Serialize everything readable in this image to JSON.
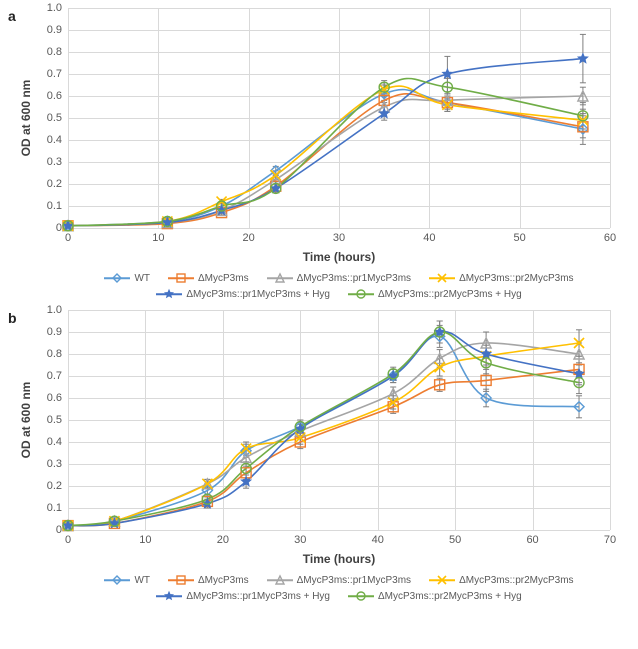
{
  "panels": [
    {
      "label": "a",
      "ylabel": "OD at 600 nm",
      "xlabel": "Time (hours)",
      "xlim": [
        0,
        60
      ],
      "xtick_step": 10,
      "ylim": [
        0,
        1
      ],
      "ytick_step": 0.1,
      "y_decimals": 1,
      "grid_color": "#d9d9d9",
      "label_fontsize": 12,
      "tick_fontsize": 11,
      "error_bar_color": "#7f7f7f",
      "error_cap": 3,
      "series": [
        {
          "name": "WT",
          "color": "#5b9bd5",
          "marker": "diamond-open",
          "x": [
            0,
            11,
            17,
            23,
            35,
            42,
            57
          ],
          "y": [
            0.01,
            0.03,
            0.1,
            0.26,
            0.61,
            0.57,
            0.45
          ],
          "err": [
            0.005,
            0.005,
            0.01,
            0.02,
            0.04,
            0.04,
            0.07
          ]
        },
        {
          "name": "ΔMycP3ms",
          "color": "#ed7d31",
          "marker": "square-open",
          "x": [
            0,
            11,
            17,
            23,
            35,
            42,
            57
          ],
          "y": [
            0.01,
            0.02,
            0.07,
            0.19,
            0.58,
            0.57,
            0.46
          ],
          "err": [
            0.005,
            0.005,
            0.01,
            0.02,
            0.03,
            0.03,
            0.05
          ]
        },
        {
          "name": "ΔMycP3ms::pr1MycP3ms",
          "color": "#a5a5a5",
          "marker": "triangle-open",
          "x": [
            0,
            11,
            17,
            23,
            35,
            42,
            57
          ],
          "y": [
            0.01,
            0.025,
            0.08,
            0.22,
            0.55,
            0.58,
            0.6
          ],
          "err": [
            0.005,
            0.005,
            0.01,
            0.02,
            0.03,
            0.03,
            0.04
          ]
        },
        {
          "name": "ΔMycP3ms::pr2MycP3ms",
          "color": "#ffc000",
          "marker": "x",
          "x": [
            0,
            11,
            17,
            23,
            35,
            42,
            57
          ],
          "y": [
            0.01,
            0.03,
            0.12,
            0.24,
            0.63,
            0.56,
            0.49
          ],
          "err": [
            0.005,
            0.005,
            0.01,
            0.02,
            0.03,
            0.03,
            0.05
          ]
        },
        {
          "name": "ΔMycP3ms::pr1MycP3ms + Hyg",
          "color": "#4472c4",
          "marker": "star",
          "x": [
            0,
            11,
            17,
            23,
            35,
            42,
            57
          ],
          "y": [
            0.01,
            0.025,
            0.08,
            0.18,
            0.52,
            0.7,
            0.77
          ],
          "err": [
            0.005,
            0.005,
            0.01,
            0.02,
            0.03,
            0.08,
            0.11
          ]
        },
        {
          "name": "ΔMycP3ms::pr2MycP3ms + Hyg",
          "color": "#70ad47",
          "marker": "circle-open",
          "x": [
            0,
            11,
            17,
            23,
            35,
            42,
            57
          ],
          "y": [
            0.01,
            0.03,
            0.1,
            0.18,
            0.64,
            0.64,
            0.51
          ],
          "err": [
            0.005,
            0.005,
            0.01,
            0.02,
            0.03,
            0.04,
            0.06
          ]
        }
      ]
    },
    {
      "label": "b",
      "ylabel": "OD at 600 nm",
      "xlabel": "Time (hours)",
      "xlim": [
        0,
        70
      ],
      "xtick_step": 10,
      "ylim": [
        0,
        1
      ],
      "ytick_step": 0.1,
      "y_decimals": 1,
      "grid_color": "#d9d9d9",
      "label_fontsize": 12,
      "tick_fontsize": 11,
      "error_bar_color": "#7f7f7f",
      "error_cap": 3,
      "series": [
        {
          "name": "WT",
          "color": "#5b9bd5",
          "marker": "diamond-open",
          "x": [
            0,
            6,
            18,
            23,
            30,
            42,
            48,
            54,
            66
          ],
          "y": [
            0.02,
            0.04,
            0.18,
            0.36,
            0.47,
            0.7,
            0.88,
            0.6,
            0.56
          ],
          "err": [
            0.005,
            0.005,
            0.02,
            0.03,
            0.03,
            0.03,
            0.05,
            0.04,
            0.05
          ]
        },
        {
          "name": "ΔMycP3ms",
          "color": "#ed7d31",
          "marker": "square-open",
          "x": [
            0,
            6,
            18,
            23,
            30,
            42,
            48,
            54,
            66
          ],
          "y": [
            0.02,
            0.03,
            0.13,
            0.26,
            0.4,
            0.56,
            0.66,
            0.68,
            0.73
          ],
          "err": [
            0.005,
            0.005,
            0.02,
            0.03,
            0.03,
            0.03,
            0.03,
            0.05,
            0.06
          ]
        },
        {
          "name": "ΔMycP3ms::pr1MycP3ms",
          "color": "#a5a5a5",
          "marker": "triangle-open",
          "x": [
            0,
            6,
            18,
            23,
            30,
            42,
            48,
            54,
            66
          ],
          "y": [
            0.02,
            0.04,
            0.21,
            0.33,
            0.45,
            0.62,
            0.78,
            0.85,
            0.8
          ],
          "err": [
            0.005,
            0.005,
            0.02,
            0.03,
            0.03,
            0.03,
            0.04,
            0.05,
            0.05
          ]
        },
        {
          "name": "ΔMycP3ms::pr2MycP3ms",
          "color": "#ffc000",
          "marker": "x",
          "x": [
            0,
            6,
            18,
            23,
            30,
            42,
            48,
            54,
            66
          ],
          "y": [
            0.02,
            0.04,
            0.21,
            0.37,
            0.42,
            0.58,
            0.74,
            0.79,
            0.85
          ],
          "err": [
            0.005,
            0.005,
            0.02,
            0.03,
            0.03,
            0.03,
            0.04,
            0.05,
            0.06
          ]
        },
        {
          "name": "ΔMycP3ms::pr1MycP3ms + Hyg",
          "color": "#4472c4",
          "marker": "star",
          "x": [
            0,
            6,
            18,
            23,
            30,
            42,
            48,
            54,
            66
          ],
          "y": [
            0.02,
            0.03,
            0.12,
            0.22,
            0.46,
            0.7,
            0.9,
            0.8,
            0.71
          ],
          "err": [
            0.005,
            0.005,
            0.02,
            0.03,
            0.03,
            0.03,
            0.05,
            0.05,
            0.05
          ]
        },
        {
          "name": "ΔMycP3ms::pr2MycP3ms + Hyg",
          "color": "#70ad47",
          "marker": "circle-open",
          "x": [
            0,
            6,
            18,
            23,
            30,
            42,
            48,
            54,
            66
          ],
          "y": [
            0.02,
            0.04,
            0.14,
            0.28,
            0.47,
            0.71,
            0.9,
            0.76,
            0.67
          ],
          "err": [
            0.005,
            0.005,
            0.02,
            0.03,
            0.03,
            0.03,
            0.05,
            0.05,
            0.05
          ]
        }
      ]
    }
  ],
  "marker_size": 5,
  "line_width": 1.6
}
